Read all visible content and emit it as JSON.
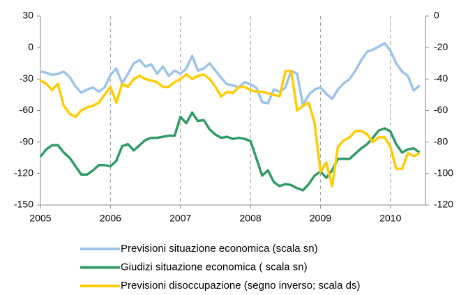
{
  "chart_data": {
    "type": "line",
    "x": [
      2005,
      2005.083,
      2005.167,
      2005.25,
      2005.333,
      2005.417,
      2005.5,
      2005.583,
      2005.667,
      2005.75,
      2005.833,
      2005.917,
      2006,
      2006.083,
      2006.167,
      2006.25,
      2006.333,
      2006.417,
      2006.5,
      2006.583,
      2006.667,
      2006.75,
      2006.833,
      2006.917,
      2007,
      2007.083,
      2007.167,
      2007.25,
      2007.333,
      2007.417,
      2007.5,
      2007.583,
      2007.667,
      2007.75,
      2007.833,
      2007.917,
      2008,
      2008.083,
      2008.167,
      2008.25,
      2008.333,
      2008.417,
      2008.5,
      2008.583,
      2008.667,
      2008.75,
      2008.833,
      2008.917,
      2009,
      2009.083,
      2009.167,
      2009.25,
      2009.333,
      2009.417,
      2009.5,
      2009.583,
      2009.667,
      2009.75,
      2009.833,
      2009.917,
      2010,
      2010.083,
      2010.167,
      2010.25,
      2010.333,
      2010.417
    ],
    "series": [
      {
        "name": "Previsioni situazione economica (scala sn)",
        "color": "#9dc3e6",
        "values": [
          -23,
          -24,
          -26,
          -25,
          -23,
          -28,
          -37,
          -43,
          -40,
          -38,
          -42,
          -38,
          -26,
          -20,
          -34,
          -25,
          -15,
          -12,
          -18,
          -16,
          -25,
          -18,
          -27,
          -22,
          -25,
          -20,
          -8,
          -22,
          -20,
          -15,
          -22,
          -29,
          -35,
          -36,
          -38,
          -33,
          -35,
          -38,
          -52,
          -53,
          -40,
          -42,
          -38,
          -22,
          -25,
          -55,
          -45,
          -40,
          -38,
          -44,
          -49,
          -40,
          -34,
          -30,
          -22,
          -12,
          -4,
          -2,
          1,
          4,
          -3,
          -15,
          -23,
          -27,
          -41,
          -36
        ]
      },
      {
        "name": "Giudizi situazione economica ( scala sn)",
        "color": "#339966",
        "values": [
          -104,
          -97,
          -93,
          -93,
          -100,
          -105,
          -113,
          -121,
          -121,
          -117,
          -112,
          -112,
          -113,
          -108,
          -94,
          -92,
          -98,
          -93,
          -88,
          -86,
          -86,
          -85,
          -84,
          -84,
          -66,
          -72,
          -62,
          -70,
          -69,
          -78,
          -83,
          -86,
          -85,
          -87,
          -86,
          -87,
          -89,
          -105,
          -122,
          -117,
          -128,
          -132,
          -130,
          -131,
          -134,
          -136,
          -130,
          -122,
          -118,
          -124,
          -117,
          -106,
          -106,
          -106,
          -101,
          -96,
          -92,
          -86,
          -79,
          -77,
          -80,
          -92,
          -100,
          -97,
          -96,
          -100
        ]
      },
      {
        "name": "Previsioni disoccupazione (segno inverso; scala ds)",
        "color": "#ffcc00",
        "axis": "y2",
        "values": [
          -41,
          -43,
          -47,
          -43,
          -57,
          -62,
          -64,
          -60,
          -58,
          -57,
          -55,
          -50,
          -45,
          -55,
          -43,
          -45,
          -40,
          -38,
          -40,
          -41,
          -42,
          -45,
          -45,
          -42,
          -40,
          -37,
          -40,
          -38,
          -37,
          -40,
          -45,
          -51,
          -48,
          -49,
          -45,
          -45,
          -47,
          -48,
          -48,
          -49,
          -50,
          -51,
          -35,
          -35,
          -60,
          -57,
          -55,
          -68,
          -99,
          -93,
          -108,
          -83,
          -79,
          -77,
          -73,
          -73,
          -75,
          -80,
          -77,
          -77,
          -83,
          -97,
          -97,
          -87,
          -89,
          -87
        ]
      }
    ],
    "xlim": [
      2005,
      2010.5
    ],
    "xticks": [
      2005,
      2006,
      2007,
      2008,
      2009,
      2010
    ],
    "ylim": [
      -150,
      30
    ],
    "yticks": [
      -150,
      -120,
      -90,
      -60,
      -30,
      0,
      30
    ],
    "y2lim": [
      -120,
      0
    ],
    "y2ticks": [
      -120,
      -100,
      -80,
      -60,
      -40,
      -20,
      0
    ],
    "grid": "x",
    "legend": "bottom"
  }
}
